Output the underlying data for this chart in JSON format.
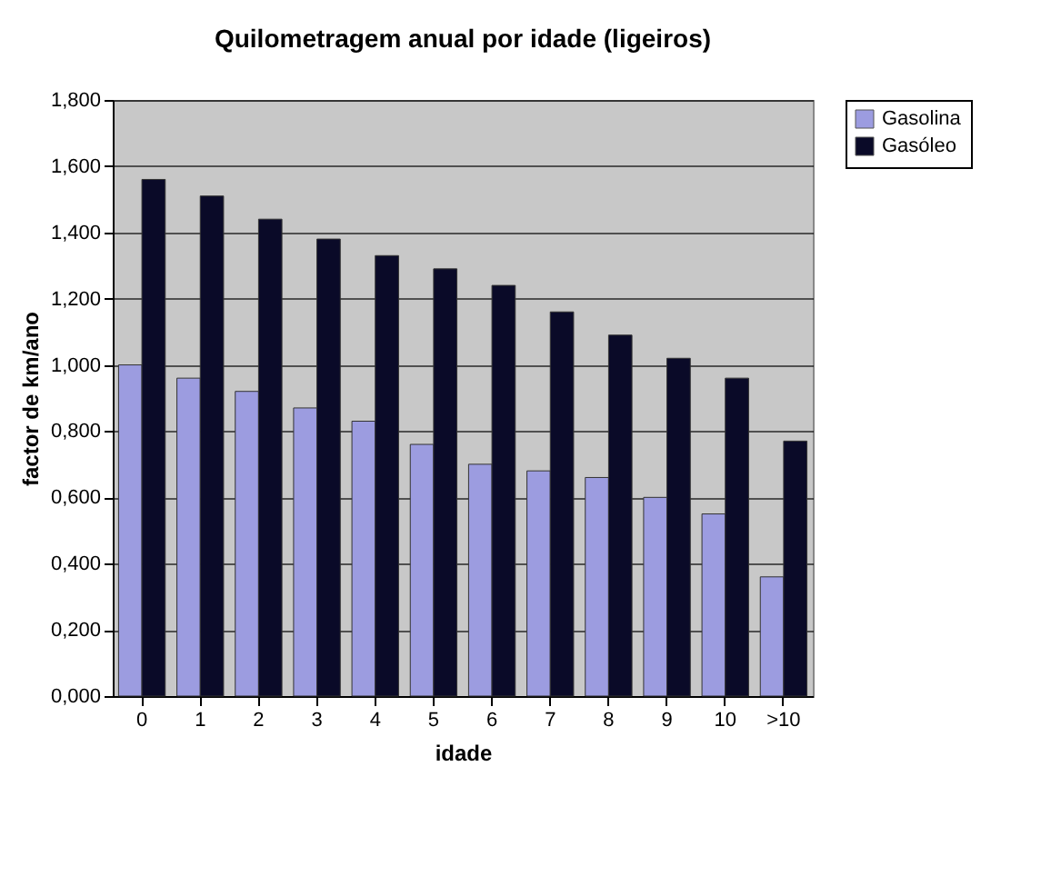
{
  "chart_data": {
    "type": "bar",
    "title": "Quilometragem anual por idade (ligeiros)",
    "xlabel": "idade",
    "ylabel": "factor de km/ano",
    "categories": [
      "0",
      "1",
      "2",
      "3",
      "4",
      "5",
      "6",
      "7",
      "8",
      "9",
      "10",
      ">10"
    ],
    "series": [
      {
        "name": "Gasolina",
        "color": "#9c9ce0",
        "values": [
          1.0,
          0.96,
          0.92,
          0.87,
          0.83,
          0.76,
          0.7,
          0.68,
          0.66,
          0.6,
          0.55,
          0.36
        ]
      },
      {
        "name": "Gasóleo",
        "color": "#0a0a28",
        "values": [
          1.56,
          1.51,
          1.44,
          1.38,
          1.33,
          1.29,
          1.24,
          1.16,
          1.09,
          1.02,
          0.96,
          0.77
        ]
      }
    ],
    "ylim": [
      0,
      1.8
    ],
    "yticks": [
      {
        "value": 0,
        "label": "0,000"
      },
      {
        "value": 0.2,
        "label": "0,200"
      },
      {
        "value": 0.4,
        "label": "0,400"
      },
      {
        "value": 0.6,
        "label": "0,600"
      },
      {
        "value": 0.8,
        "label": "0,800"
      },
      {
        "value": 1.0,
        "label": "1,000"
      },
      {
        "value": 1.2,
        "label": "1,200"
      },
      {
        "value": 1.4,
        "label": "1,400"
      },
      {
        "value": 1.6,
        "label": "1,600"
      },
      {
        "value": 1.8,
        "label": "1,800"
      }
    ],
    "grid": "y",
    "legend": "right"
  }
}
